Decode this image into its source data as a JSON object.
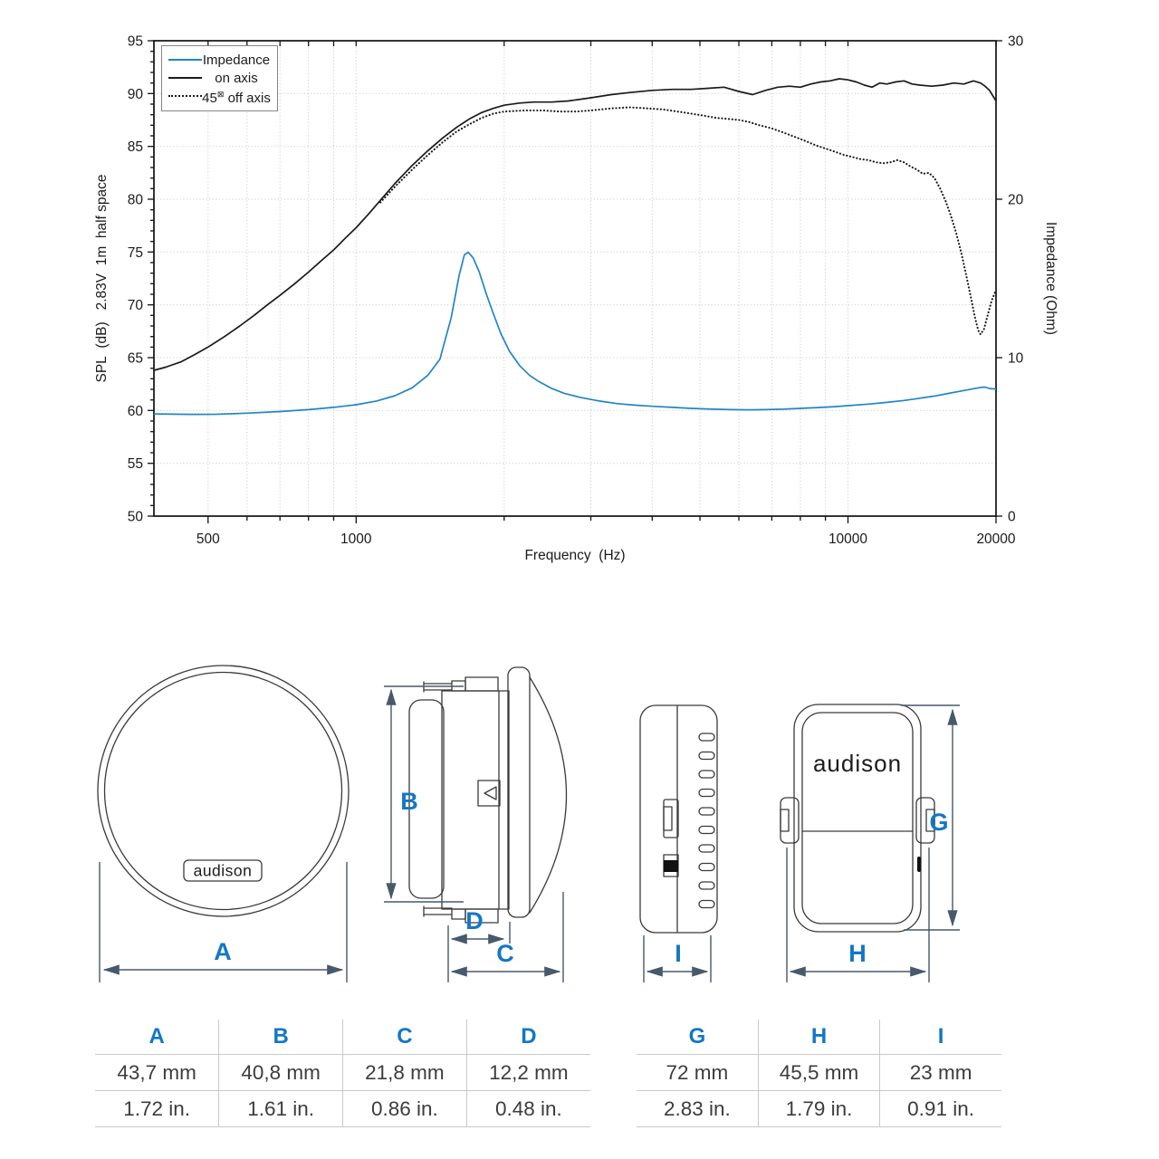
{
  "page": {
    "background": "#ffffff"
  },
  "colors": {
    "accent_blue": "#1377c5",
    "curve_blue": "#2185c5",
    "dim_line": "#47596a"
  },
  "chart_data": {
    "type": "line",
    "x_scale": "log",
    "x_axis_label": "Frequency  (Hz)",
    "y_axis_left_label": "SPL  (dB)   2.83V  1m  half space",
    "y_axis_right_label": "Impedance (Ohm)",
    "x_range": [
      388,
      20000
    ],
    "y_left_range": [
      50,
      95
    ],
    "y_right_range": [
      0,
      30
    ],
    "x_ticks": [
      500,
      600,
      700,
      800,
      900,
      1000,
      2000,
      3000,
      4000,
      5000,
      6000,
      7000,
      8000,
      9000,
      10000,
      20000
    ],
    "x_ticks_labeled": [
      500,
      1000,
      10000,
      20000
    ],
    "y_left_ticks": [
      50,
      55,
      60,
      65,
      70,
      75,
      80,
      85,
      90,
      95
    ],
    "y_right_ticks": [
      0,
      10,
      20,
      30
    ],
    "grid": true,
    "legend_position": "top-left",
    "legend": {
      "items": [
        {
          "label": "Impedance",
          "style": "solid",
          "color": "#2185c5"
        },
        {
          "label": "on axis",
          "style": "solid",
          "color": "#1a1a1a"
        },
        {
          "pre": "45",
          "box": "⊠",
          "post": " off axis",
          "style": "dotted",
          "color": "#1a1a1a"
        }
      ]
    },
    "series": [
      {
        "name": "Impedance",
        "slug": "impedance",
        "axis": "right",
        "unit": "Ohm",
        "color": "#2185c5",
        "style": "solid",
        "points": [
          [
            388,
            6.45
          ],
          [
            460,
            6.42
          ],
          [
            520,
            6.43
          ],
          [
            600,
            6.5
          ],
          [
            700,
            6.6
          ],
          [
            800,
            6.72
          ],
          [
            900,
            6.86
          ],
          [
            1000,
            7.03
          ],
          [
            1100,
            7.26
          ],
          [
            1200,
            7.6
          ],
          [
            1300,
            8.1
          ],
          [
            1400,
            8.9
          ],
          [
            1480,
            9.9
          ],
          [
            1560,
            12.5
          ],
          [
            1620,
            15.2
          ],
          [
            1660,
            16.5
          ],
          [
            1690,
            16.65
          ],
          [
            1730,
            16.3
          ],
          [
            1780,
            15.4
          ],
          [
            1840,
            14.0
          ],
          [
            1900,
            12.8
          ],
          [
            1970,
            11.5
          ],
          [
            2050,
            10.4
          ],
          [
            2150,
            9.5
          ],
          [
            2250,
            8.9
          ],
          [
            2350,
            8.5
          ],
          [
            2500,
            8.05
          ],
          [
            2650,
            7.75
          ],
          [
            2850,
            7.5
          ],
          [
            3100,
            7.28
          ],
          [
            3400,
            7.1
          ],
          [
            3700,
            7.0
          ],
          [
            4000,
            6.93
          ],
          [
            4400,
            6.86
          ],
          [
            4800,
            6.8
          ],
          [
            5300,
            6.75
          ],
          [
            5800,
            6.72
          ],
          [
            6300,
            6.71
          ],
          [
            6800,
            6.72
          ],
          [
            7400,
            6.75
          ],
          [
            8000,
            6.8
          ],
          [
            8700,
            6.85
          ],
          [
            9400,
            6.91
          ],
          [
            10000,
            6.97
          ],
          [
            11000,
            7.07
          ],
          [
            12000,
            7.18
          ],
          [
            13000,
            7.3
          ],
          [
            14000,
            7.44
          ],
          [
            15000,
            7.58
          ],
          [
            16000,
            7.74
          ],
          [
            17000,
            7.9
          ],
          [
            18000,
            8.04
          ],
          [
            18600,
            8.12
          ],
          [
            19000,
            8.14
          ],
          [
            19400,
            8.05
          ],
          [
            20000,
            8.02
          ]
        ]
      },
      {
        "name": "on axis",
        "slug": "on-axis",
        "axis": "left",
        "unit": "dB",
        "color": "#1a1a1a",
        "style": "solid",
        "points": [
          [
            388,
            63.8
          ],
          [
            410,
            64.1
          ],
          [
            440,
            64.6
          ],
          [
            470,
            65.3
          ],
          [
            500,
            66.0
          ],
          [
            540,
            67.0
          ],
          [
            580,
            68.0
          ],
          [
            620,
            69.0
          ],
          [
            660,
            70.0
          ],
          [
            700,
            70.9
          ],
          [
            750,
            72.0
          ],
          [
            800,
            73.1
          ],
          [
            850,
            74.2
          ],
          [
            900,
            75.2
          ],
          [
            950,
            76.3
          ],
          [
            1000,
            77.3
          ],
          [
            1060,
            78.6
          ],
          [
            1120,
            79.9
          ],
          [
            1200,
            81.5
          ],
          [
            1300,
            83.2
          ],
          [
            1400,
            84.6
          ],
          [
            1500,
            85.8
          ],
          [
            1600,
            86.8
          ],
          [
            1700,
            87.6
          ],
          [
            1800,
            88.2
          ],
          [
            1900,
            88.6
          ],
          [
            2000,
            88.9
          ],
          [
            2150,
            89.1
          ],
          [
            2300,
            89.2
          ],
          [
            2500,
            89.2
          ],
          [
            2700,
            89.3
          ],
          [
            3000,
            89.6
          ],
          [
            3300,
            89.9
          ],
          [
            3600,
            90.1
          ],
          [
            4000,
            90.3
          ],
          [
            4400,
            90.4
          ],
          [
            4800,
            90.4
          ],
          [
            5200,
            90.5
          ],
          [
            5600,
            90.6
          ],
          [
            6000,
            90.2
          ],
          [
            6400,
            89.9
          ],
          [
            6800,
            90.3
          ],
          [
            7200,
            90.6
          ],
          [
            7600,
            90.7
          ],
          [
            8000,
            90.6
          ],
          [
            8400,
            90.9
          ],
          [
            8800,
            91.1
          ],
          [
            9200,
            91.2
          ],
          [
            9600,
            91.4
          ],
          [
            10000,
            91.3
          ],
          [
            10400,
            91.1
          ],
          [
            10800,
            90.8
          ],
          [
            11200,
            90.6
          ],
          [
            11600,
            91.0
          ],
          [
            12000,
            90.9
          ],
          [
            12500,
            91.1
          ],
          [
            13000,
            91.2
          ],
          [
            13500,
            90.9
          ],
          [
            14000,
            90.8
          ],
          [
            14800,
            90.7
          ],
          [
            15600,
            90.8
          ],
          [
            16400,
            91.0
          ],
          [
            17200,
            90.9
          ],
          [
            18000,
            91.2
          ],
          [
            18600,
            91.0
          ],
          [
            19000,
            90.7
          ],
          [
            19400,
            90.3
          ],
          [
            20000,
            89.3
          ]
        ]
      },
      {
        "name": "45° off axis",
        "slug": "45-off-axis",
        "axis": "left",
        "unit": "dB",
        "color": "#1a1a1a",
        "style": "dotted",
        "points": [
          [
            1120,
            79.7
          ],
          [
            1200,
            81.2
          ],
          [
            1300,
            82.8
          ],
          [
            1400,
            84.2
          ],
          [
            1500,
            85.4
          ],
          [
            1600,
            86.4
          ],
          [
            1700,
            87.1
          ],
          [
            1800,
            87.7
          ],
          [
            1900,
            88.1
          ],
          [
            2000,
            88.3
          ],
          [
            2200,
            88.4
          ],
          [
            2400,
            88.4
          ],
          [
            2600,
            88.3
          ],
          [
            2800,
            88.3
          ],
          [
            3000,
            88.4
          ],
          [
            3300,
            88.6
          ],
          [
            3600,
            88.7
          ],
          [
            3900,
            88.6
          ],
          [
            4200,
            88.5
          ],
          [
            4500,
            88.3
          ],
          [
            4800,
            88.1
          ],
          [
            5100,
            87.9
          ],
          [
            5400,
            87.7
          ],
          [
            5700,
            87.6
          ],
          [
            6000,
            87.5
          ],
          [
            6300,
            87.3
          ],
          [
            6600,
            87.0
          ],
          [
            7000,
            86.7
          ],
          [
            7400,
            86.3
          ],
          [
            7800,
            85.9
          ],
          [
            8200,
            85.5
          ],
          [
            8600,
            85.1
          ],
          [
            9000,
            84.8
          ],
          [
            9400,
            84.5
          ],
          [
            9800,
            84.2
          ],
          [
            10200,
            84.0
          ],
          [
            10600,
            83.8
          ],
          [
            11000,
            83.7
          ],
          [
            11400,
            83.5
          ],
          [
            11800,
            83.4
          ],
          [
            12200,
            83.5
          ],
          [
            12600,
            83.7
          ],
          [
            13000,
            83.5
          ],
          [
            13400,
            83.1
          ],
          [
            13800,
            82.8
          ],
          [
            14200,
            82.4
          ],
          [
            14600,
            82.5
          ],
          [
            15000,
            82.0
          ],
          [
            15400,
            81.0
          ],
          [
            15800,
            79.8
          ],
          [
            16200,
            78.4
          ],
          [
            16600,
            76.8
          ],
          [
            17000,
            74.9
          ],
          [
            17400,
            72.8
          ],
          [
            17800,
            70.6
          ],
          [
            18100,
            68.9
          ],
          [
            18400,
            67.6
          ],
          [
            18600,
            67.2
          ],
          [
            18900,
            67.7
          ],
          [
            19200,
            68.9
          ],
          [
            19600,
            70.4
          ],
          [
            20000,
            71.4
          ]
        ]
      }
    ]
  },
  "drawings": {
    "logo_text": "audison",
    "dimension_labels": {
      "A": "A",
      "B": "B",
      "C": "C",
      "D": "D",
      "G": "G",
      "H": "H",
      "I": "I"
    }
  },
  "tables": [
    {
      "id": "tweeter-dimensions",
      "headers": [
        "A",
        "B",
        "C",
        "D"
      ],
      "rows": [
        [
          "43,7 mm",
          "40,8 mm",
          "21,8 mm",
          "12,2 mm"
        ],
        [
          "1.72 in.",
          "1.61 in.",
          "0.86 in.",
          "0.48 in."
        ]
      ]
    },
    {
      "id": "crossover-dimensions",
      "headers": [
        "G",
        "H",
        "I"
      ],
      "rows": [
        [
          "72 mm",
          "45,5 mm",
          "23 mm"
        ],
        [
          "2.83 in.",
          "1.79 in.",
          "0.91 in."
        ]
      ]
    }
  ]
}
